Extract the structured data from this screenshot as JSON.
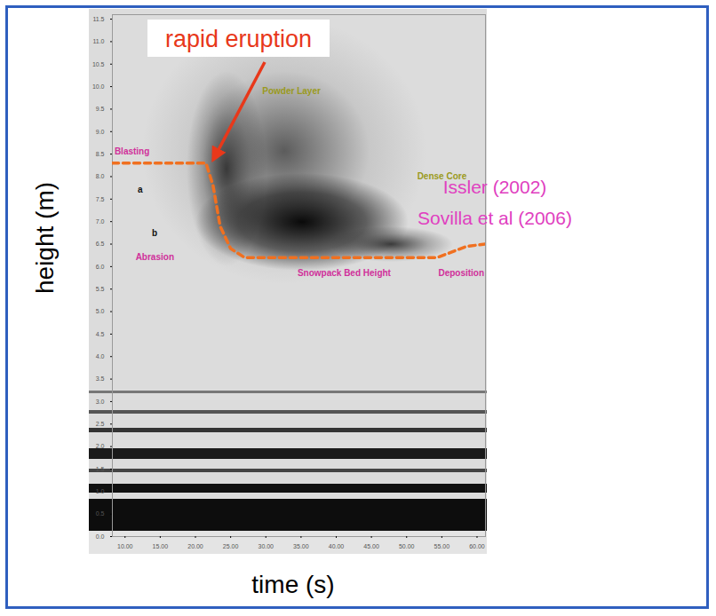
{
  "chart_data": {
    "type": "line",
    "xlabel": "time (s)",
    "ylabel": "height (m)",
    "xlim": [
      8.2,
      61.2
    ],
    "ylim": [
      0,
      11.6
    ],
    "xticks": [
      {
        "value": 10,
        "label": "10.00"
      },
      {
        "value": 15,
        "label": "15.00"
      },
      {
        "value": 20,
        "label": "20.00"
      },
      {
        "value": 25,
        "label": "25.00"
      },
      {
        "value": 30,
        "label": "30.00"
      },
      {
        "value": 35,
        "label": "35.00"
      },
      {
        "value": 40,
        "label": "40.00"
      },
      {
        "value": 45,
        "label": "45.00"
      },
      {
        "value": 50,
        "label": "50.00"
      },
      {
        "value": 55,
        "label": "55.00"
      },
      {
        "value": 60,
        "label": "60.00"
      }
    ],
    "yticks": [
      {
        "value": 0,
        "label": "0.0"
      },
      0.5,
      {
        "value": 1,
        "label": "1.0"
      },
      1.5,
      {
        "value": 2,
        "label": "2.0"
      },
      2.5,
      {
        "value": 3,
        "label": "3.0"
      },
      3.5,
      {
        "value": 4,
        "label": "4.0"
      },
      4.5,
      {
        "value": 5,
        "label": "5.0"
      },
      5.5,
      {
        "value": 6,
        "label": "6.0"
      },
      6.5,
      {
        "value": 7,
        "label": "7.0"
      },
      7.5,
      {
        "value": 8,
        "label": "8.0"
      },
      8.5,
      {
        "value": 9,
        "label": "9.0"
      },
      9.5,
      {
        "value": 10,
        "label": "10.0"
      },
      10.5,
      {
        "value": 11,
        "label": "11.0"
      },
      11.5
    ],
    "grid": false,
    "series": [
      {
        "color": "#f07020",
        "line_style": "dashed",
        "x": [
          8.2,
          21.5,
          22.5,
          23.5,
          25,
          27,
          54.3,
          56,
          58.5,
          61.2
        ],
        "values": [
          8.3,
          8.3,
          7.8,
          6.9,
          6.4,
          6.2,
          6.2,
          6.3,
          6.45,
          6.5
        ]
      }
    ],
    "annotations": [
      {
        "text": "Blasting",
        "x": 8.5,
        "y": 8.55,
        "color": "#d0309a"
      },
      {
        "text": "a",
        "x": 11.8,
        "y": 7.7,
        "color": "#111111"
      },
      {
        "text": "b",
        "x": 13.8,
        "y": 6.75,
        "color": "#111111"
      },
      {
        "text": "Abrasion",
        "x": 11.5,
        "y": 6.2,
        "color": "#d0309a"
      },
      {
        "text": "Powder Layer",
        "x": 29.5,
        "y": 9.9,
        "color": "#9a9a20"
      },
      {
        "text": "Dense Core",
        "x": 51.5,
        "y": 8.0,
        "color": "#9a9a20"
      },
      {
        "text": "Snowpack Bed Height",
        "x": 34.5,
        "y": 5.85,
        "color": "#d0309a"
      },
      {
        "text": "Deposition",
        "x": 54.5,
        "y": 5.85,
        "color": "#d0309a"
      }
    ],
    "callout": {
      "text": "rapid eruption",
      "color": "#e8381a"
    },
    "citations": {
      "texts": [
        "Issler (2002)",
        "Sovilla et al (2006)"
      ],
      "color": "#e040c0"
    }
  }
}
